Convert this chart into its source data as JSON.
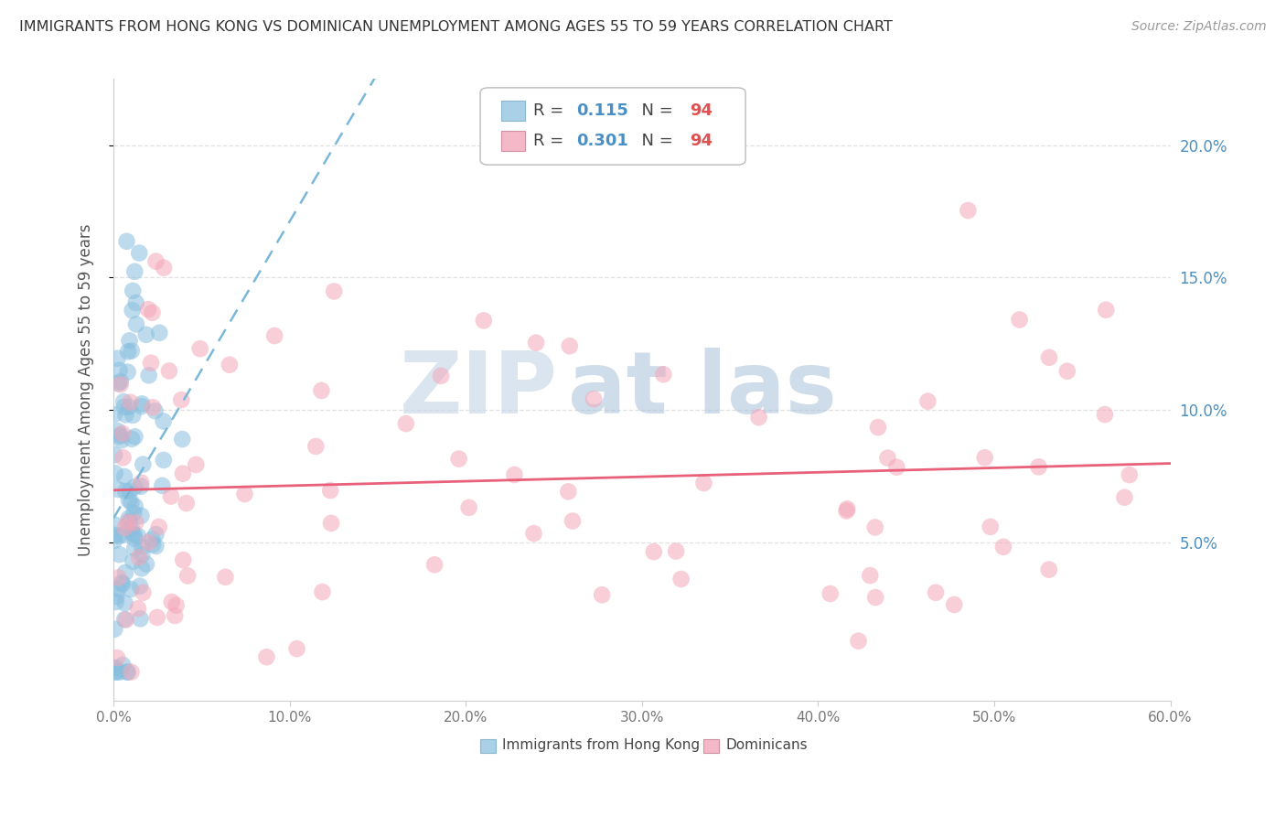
{
  "title": "IMMIGRANTS FROM HONG KONG VS DOMINICAN UNEMPLOYMENT AMONG AGES 55 TO 59 YEARS CORRELATION CHART",
  "source": "Source: ZipAtlas.com",
  "ylabel": "Unemployment Among Ages 55 to 59 years",
  "xlim": [
    0.0,
    0.6
  ],
  "ylim": [
    -0.01,
    0.225
  ],
  "xticks": [
    0.0,
    0.1,
    0.2,
    0.3,
    0.4,
    0.5,
    0.6
  ],
  "xticklabels": [
    "0.0%",
    "10.0%",
    "20.0%",
    "30.0%",
    "40.0%",
    "50.0%",
    "60.0%"
  ],
  "ytick_positions": [
    0.05,
    0.1,
    0.15,
    0.2
  ],
  "ytick_labels": [
    "5.0%",
    "10.0%",
    "15.0%",
    "20.0%"
  ],
  "legend_r1_val": "0.115",
  "legend_n1_val": "94",
  "legend_r2_val": "0.301",
  "legend_n2_val": "94",
  "blue_color": "#88bfdf",
  "pink_color": "#f4a7b9",
  "trend_blue_color": "#7ab8d9",
  "trend_pink_color": "#e8607a",
  "legend_blue_fill": "#aad0e8",
  "legend_pink_fill": "#f4b8c8",
  "r_val_color": "#4a90c4",
  "n_val_color": "#e05050",
  "watermark_zip_color": "#c0cfe0",
  "watermark_atlas_color": "#9ab8d0",
  "background_color": "#ffffff",
  "grid_color": "#e0e0e0",
  "axis_color": "#cccccc",
  "tick_color": "#777777",
  "title_color": "#333333",
  "source_color": "#999999",
  "ylabel_color": "#555555",
  "hk_seed": 12345,
  "dom_seed": 67890
}
